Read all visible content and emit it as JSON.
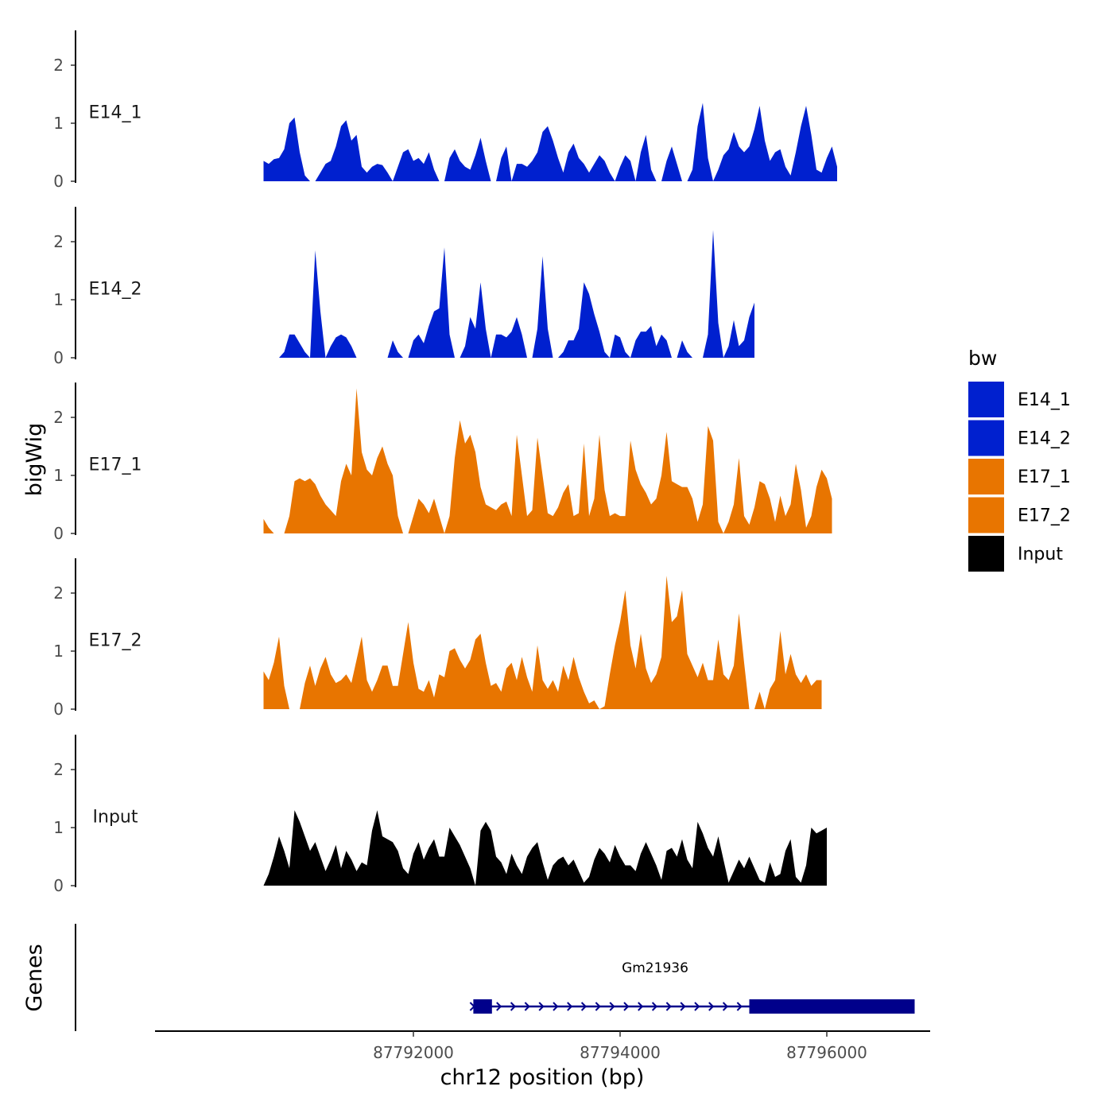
{
  "chart_data": {
    "type": "area",
    "title": "",
    "xlabel": "chr12 position (bp)",
    "ylabel": "bigWig",
    "genes_label": "Genes",
    "xlim": [
      87789500,
      87797000
    ],
    "ylim": [
      0,
      2.6
    ],
    "x_ticks": [
      87792000,
      87794000,
      87796000
    ],
    "x_tick_labels": [
      "87792000",
      "87794000",
      "87796000"
    ],
    "y_ticks": [
      0,
      1,
      2
    ],
    "y_tick_labels": [
      "0",
      "1",
      "2"
    ],
    "legend": {
      "title": "bw",
      "position": "right",
      "entries": [
        {
          "label": "E14_1",
          "color": "#0020CF"
        },
        {
          "label": "E14_2",
          "color": "#0020CF"
        },
        {
          "label": "E17_1",
          "color": "#E87500"
        },
        {
          "label": "E17_2",
          "color": "#E87500"
        },
        {
          "label": "Input",
          "color": "#000000"
        }
      ]
    },
    "x_start": 87790550,
    "x_step": 50,
    "series": [
      {
        "name": "E14_1",
        "color": "#0020CF",
        "values": [
          0.35,
          0.3,
          0.38,
          0.4,
          0.55,
          1.0,
          1.1,
          0.5,
          0.1,
          0,
          0,
          0.15,
          0.3,
          0.35,
          0.6,
          0.95,
          1.05,
          0.7,
          0.8,
          0.25,
          0.15,
          0.25,
          0.3,
          0.28,
          0.15,
          0,
          0.25,
          0.5,
          0.55,
          0.35,
          0.4,
          0.3,
          0.5,
          0.2,
          0,
          0,
          0.4,
          0.55,
          0.35,
          0.25,
          0.2,
          0.45,
          0.75,
          0.35,
          0,
          0,
          0.4,
          0.6,
          0,
          0.3,
          0.3,
          0.25,
          0.35,
          0.5,
          0.85,
          0.95,
          0.7,
          0.4,
          0.15,
          0.5,
          0.65,
          0.4,
          0.3,
          0.15,
          0.3,
          0.45,
          0.35,
          0.15,
          0,
          0.25,
          0.45,
          0.35,
          0,
          0.5,
          0.8,
          0.2,
          0,
          0,
          0.35,
          0.6,
          0.3,
          0,
          0,
          0.2,
          0.95,
          1.35,
          0.4,
          0,
          0.2,
          0.45,
          0.55,
          0.85,
          0.6,
          0.5,
          0.6,
          0.9,
          1.3,
          0.7,
          0.35,
          0.5,
          0.55,
          0.25,
          0.1,
          0.5,
          0.95,
          1.3,
          0.8,
          0.2,
          0.15,
          0.4,
          0.6,
          0.25
        ]
      },
      {
        "name": "E14_2",
        "color": "#0020CF",
        "values": [
          0,
          0,
          0,
          0,
          0.1,
          0.4,
          0.4,
          0.25,
          0.1,
          0,
          1.85,
          0.8,
          0,
          0.2,
          0.35,
          0.4,
          0.35,
          0.2,
          0,
          0,
          0,
          0,
          0,
          0,
          0,
          0.3,
          0.1,
          0,
          0,
          0.3,
          0.4,
          0.25,
          0.55,
          0.8,
          0.85,
          1.9,
          0.4,
          0,
          0,
          0.2,
          0.7,
          0.5,
          1.3,
          0.5,
          0,
          0.4,
          0.4,
          0.35,
          0.45,
          0.7,
          0.4,
          0,
          0,
          0.5,
          1.75,
          0.5,
          0,
          0,
          0.1,
          0.3,
          0.3,
          0.5,
          1.3,
          1.1,
          0.75,
          0.45,
          0.1,
          0,
          0.4,
          0.35,
          0.1,
          0,
          0.3,
          0.45,
          0.45,
          0.55,
          0.2,
          0.4,
          0.3,
          0,
          0,
          0.3,
          0.1,
          0,
          0,
          0,
          0.4,
          2.2,
          0.6,
          0,
          0.2,
          0.65,
          0.2,
          0.3,
          0.7,
          0.95
        ]
      },
      {
        "name": "E17_1",
        "color": "#E87500",
        "values": [
          0.25,
          0.1,
          0,
          0,
          0,
          0.3,
          0.9,
          0.95,
          0.9,
          0.95,
          0.85,
          0.65,
          0.5,
          0.4,
          0.3,
          0.9,
          1.2,
          1.0,
          2.5,
          1.4,
          1.1,
          1.0,
          1.3,
          1.5,
          1.2,
          1.0,
          0.3,
          0,
          0,
          0.3,
          0.6,
          0.5,
          0.35,
          0.6,
          0.3,
          0,
          0.3,
          1.3,
          1.95,
          1.55,
          1.7,
          1.4,
          0.8,
          0.5,
          0.45,
          0.4,
          0.5,
          0.55,
          0.3,
          1.7,
          1.0,
          0.3,
          0.4,
          1.65,
          1.0,
          0.35,
          0.3,
          0.45,
          0.7,
          0.85,
          0.3,
          0.35,
          1.55,
          0.3,
          0.6,
          1.7,
          0.75,
          0.3,
          0.35,
          0.3,
          0.3,
          1.6,
          1.1,
          0.85,
          0.7,
          0.5,
          0.6,
          1.0,
          1.75,
          0.9,
          0.85,
          0.8,
          0.8,
          0.6,
          0.2,
          0.5,
          1.85,
          1.6,
          0.2,
          0,
          0.2,
          0.5,
          1.3,
          0.3,
          0.15,
          0.45,
          0.9,
          0.85,
          0.6,
          0.2,
          0.65,
          0.3,
          0.5,
          1.2,
          0.75,
          0.1,
          0.3,
          0.8,
          1.1,
          0.95,
          0.6
        ]
      },
      {
        "name": "E17_2",
        "color": "#E87500",
        "values": [
          0.65,
          0.5,
          0.8,
          1.25,
          0.4,
          0,
          0,
          0,
          0.45,
          0.75,
          0.4,
          0.7,
          0.9,
          0.6,
          0.45,
          0.5,
          0.6,
          0.45,
          0.85,
          1.25,
          0.5,
          0.3,
          0.5,
          0.75,
          0.75,
          0.4,
          0.4,
          0.95,
          1.5,
          0.8,
          0.35,
          0.3,
          0.5,
          0.2,
          0.6,
          0.55,
          1.0,
          1.05,
          0.85,
          0.7,
          0.85,
          1.2,
          1.3,
          0.8,
          0.4,
          0.45,
          0.3,
          0.7,
          0.8,
          0.5,
          0.9,
          0.55,
          0.3,
          1.1,
          0.5,
          0.35,
          0.5,
          0.3,
          0.75,
          0.5,
          0.9,
          0.55,
          0.3,
          0.1,
          0.15,
          0,
          0.05,
          0.6,
          1.1,
          1.5,
          2.05,
          1.1,
          0.7,
          1.3,
          0.7,
          0.45,
          0.6,
          0.9,
          2.3,
          1.5,
          1.6,
          2.05,
          0.95,
          0.75,
          0.55,
          0.8,
          0.5,
          0.5,
          1.2,
          0.6,
          0.5,
          0.75,
          1.65,
          0.8,
          0,
          0,
          0.3,
          0,
          0.35,
          0.5,
          1.35,
          0.6,
          0.95,
          0.6,
          0.45,
          0.6,
          0.4,
          0.5,
          0.5
        ]
      },
      {
        "name": "Input",
        "color": "#000000",
        "values": [
          0,
          0.2,
          0.5,
          0.85,
          0.6,
          0.3,
          1.3,
          1.1,
          0.85,
          0.6,
          0.75,
          0.5,
          0.25,
          0.45,
          0.7,
          0.3,
          0.6,
          0.45,
          0.25,
          0.4,
          0.35,
          0.95,
          1.3,
          0.85,
          0.8,
          0.75,
          0.6,
          0.3,
          0.2,
          0.55,
          0.75,
          0.45,
          0.65,
          0.8,
          0.5,
          0.5,
          1.0,
          0.85,
          0.7,
          0.5,
          0.3,
          0,
          0.95,
          1.1,
          0.95,
          0.5,
          0.4,
          0.2,
          0.55,
          0.35,
          0.2,
          0.5,
          0.65,
          0.75,
          0.4,
          0.1,
          0.35,
          0.45,
          0.5,
          0.35,
          0.45,
          0.25,
          0.05,
          0.15,
          0.45,
          0.65,
          0.55,
          0.4,
          0.7,
          0.5,
          0.35,
          0.35,
          0.25,
          0.55,
          0.75,
          0.55,
          0.35,
          0.1,
          0.6,
          0.65,
          0.5,
          0.8,
          0.45,
          0.3,
          1.1,
          0.9,
          0.65,
          0.5,
          0.85,
          0.45,
          0.05,
          0.25,
          0.45,
          0.3,
          0.5,
          0.3,
          0.1,
          0.05,
          0.4,
          0.15,
          0.2,
          0.6,
          0.8,
          0.15,
          0.05,
          0.35,
          1.0,
          0.9,
          0.95,
          1.0
        ]
      }
    ],
    "gene": {
      "name": "Gm21936",
      "start": 87792580,
      "end": 87796850,
      "color": "#00008B",
      "strand": "+",
      "exons": [
        [
          87792580,
          87792760
        ],
        [
          87795250,
          87796850
        ]
      ]
    }
  }
}
